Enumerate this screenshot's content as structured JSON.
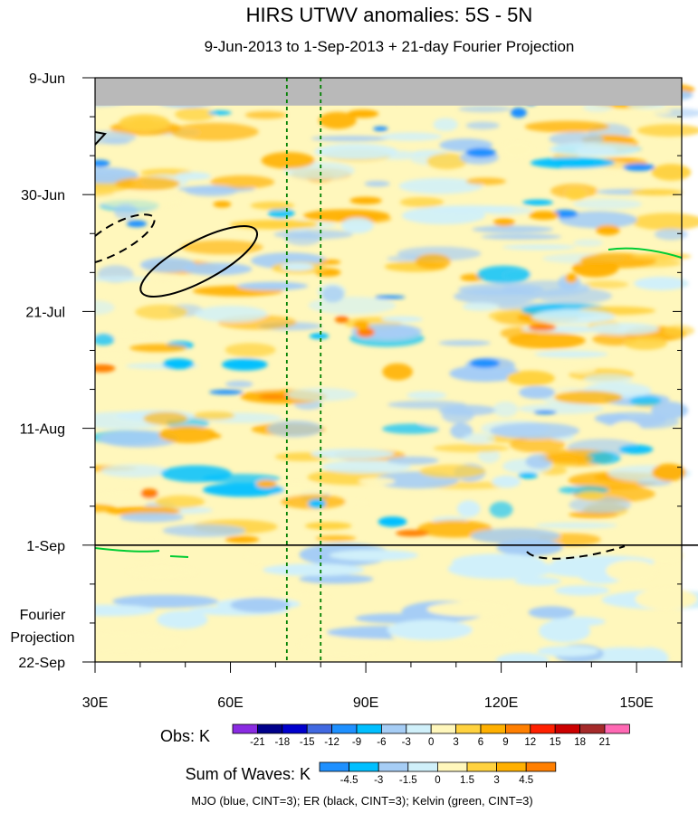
{
  "chart_data": {
    "type": "heatmap",
    "title": "HIRS UTWV anomalies: 5S - 5N",
    "subtitle": "9-Jun-2013 to 1-Sep-2013 + 21-day Fourier Projection",
    "x_axis": {
      "range": [
        30,
        160
      ],
      "units": "degrees longitude",
      "ticks": [
        {
          "value": 30,
          "label": "30E"
        },
        {
          "value": 60,
          "label": "60E"
        },
        {
          "value": 90,
          "label": "90E"
        },
        {
          "value": 120,
          "label": "120E"
        },
        {
          "value": 150,
          "label": "150E"
        }
      ]
    },
    "y_axis": {
      "units": "days since 9-Jun-2013 (downward)",
      "range": [
        0,
        105
      ],
      "ticks": [
        {
          "value": 0,
          "label": "9-Jun"
        },
        {
          "value": 21,
          "label": "30-Jun"
        },
        {
          "value": 42,
          "label": "21-Jul"
        },
        {
          "value": 63,
          "label": "11-Aug"
        },
        {
          "value": 84,
          "label": "1-Sep"
        },
        {
          "value": 105,
          "label": "22-Sep"
        }
      ]
    },
    "missing_data_days": [
      0,
      5
    ],
    "observation_end_day": 84,
    "reference_lines": [
      {
        "type": "vertical",
        "x": 72.5,
        "style": "dotted",
        "color": "#008000"
      },
      {
        "type": "vertical",
        "x": 80,
        "style": "dotted",
        "color": "#008000"
      },
      {
        "type": "horizontal",
        "y": 84,
        "style": "solid",
        "color": "#000000"
      }
    ],
    "projection_label": [
      "Fourier",
      "Projection"
    ],
    "obs_colorbar": {
      "label": "Obs: K",
      "levels": [
        "-21",
        "-18",
        "-15",
        "-12",
        "-9",
        "-6",
        "-3",
        "0",
        "3",
        "6",
        "9",
        "12",
        "15",
        "18",
        "21"
      ],
      "colors": [
        "#8a2be2",
        "#00008b",
        "#0000cd",
        "#4169e1",
        "#1e90ff",
        "#00bfff",
        "#a6cdf5",
        "#d0f0fa",
        "#fff7bc",
        "#ffd23f",
        "#ffb000",
        "#ff7f00",
        "#ff2000",
        "#cc0000",
        "#a52a2a",
        "#ff69b4"
      ]
    },
    "waves_colorbar": {
      "label": "Sum of Waves: K",
      "levels": [
        "-4.5",
        "-3",
        "-1.5",
        "0",
        "1.5",
        "3",
        "4.5"
      ],
      "colors": [
        "#1e90ff",
        "#00bfff",
        "#a6cdf5",
        "#d0f0fa",
        "#fff7bc",
        "#ffd23f",
        "#ffb000",
        "#ff7f00"
      ]
    },
    "contour_legend": "MJO (blue, CINT=3); ER (black, CINT=3); Kelvin (green, CINT=3)"
  }
}
